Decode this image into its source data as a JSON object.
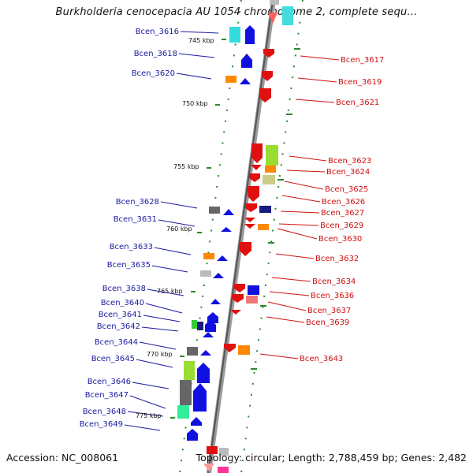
{
  "title": "Burkholderia cenocepacia AU 1054 chromosome 2, complete sequ...",
  "footer": {
    "accession": "Accession: NC_008061",
    "summary": "Topology: circular; Length: 2,788,459 bp; Genes: 2,482"
  },
  "kbp_marks": [
    "745 kbp",
    "750 kbp",
    "755 kbp",
    "760 kbp",
    "765 kbp",
    "770 kbp",
    "775 kbp"
  ],
  "genes_left": [
    "Bcen_3616",
    "Bcen_3618",
    "Bcen_3620",
    "Bcen_3628",
    "Bcen_3631",
    "Bcen_3633",
    "Bcen_3635",
    "Bcen_3638",
    "Bcen_3640",
    "Bcen_3641",
    "Bcen_3642",
    "Bcen_3644",
    "Bcen_3645",
    "Bcen_3646",
    "Bcen_3647",
    "Bcen_3648",
    "Bcen_3649"
  ],
  "genes_right": [
    "Bcen_3617",
    "Bcen_3619",
    "Bcen_3621",
    "Bcen_3623",
    "Bcen_3624",
    "Bcen_3625",
    "Bcen_3626",
    "Bcen_3627",
    "Bcen_3629",
    "Bcen_3630",
    "Bcen_3632",
    "Bcen_3634",
    "Bcen_3636",
    "Bcen_3637",
    "Bcen_3639",
    "Bcen_3643"
  ],
  "colors": {
    "forward": "#1010e0",
    "reverse": "#e01010",
    "left_label": "#1a1aa0",
    "right_label": "#d01010",
    "tick": "#2a8a2a"
  }
}
